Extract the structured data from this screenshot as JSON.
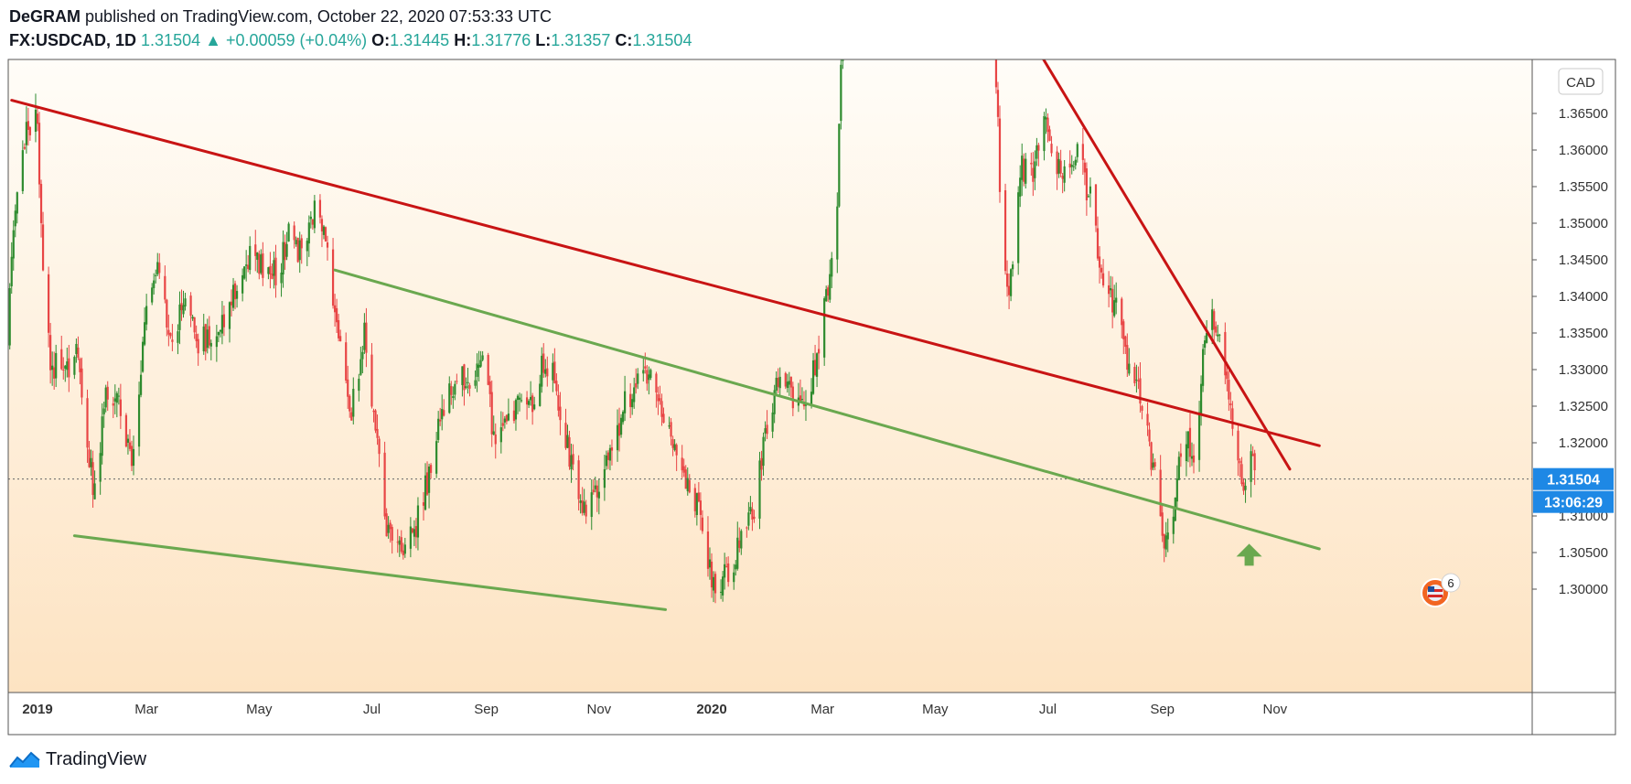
{
  "header": {
    "author": "DeGRAM",
    "published_text": "published on TradingView.com, October 22, 2020 07:53:33 UTC",
    "symbol": "FX:USDCAD, 1D",
    "last": "1.31504",
    "change": "+0.00059 (+0.04%)",
    "open_label": "O:",
    "open": "1.31445",
    "high_label": "H:",
    "high": "1.31776",
    "low_label": "L:",
    "low": "1.31357",
    "close_label": "C:",
    "close": "1.31504"
  },
  "chart_data": {
    "type": "candlestick",
    "currency_label": "CAD",
    "x_ticks": [
      "2019",
      "Mar",
      "May",
      "Jul",
      "Sep",
      "Nov",
      "2020",
      "Mar",
      "May",
      "Jul",
      "Sep",
      "Nov"
    ],
    "y_ticks": [
      "1.30000",
      "1.30500",
      "1.31000",
      "1.31504",
      "1.32000",
      "1.32500",
      "1.33000",
      "1.33500",
      "1.34000",
      "1.34500",
      "1.35000",
      "1.35500",
      "1.36000",
      "1.36500"
    ],
    "ylim": [
      1.2972,
      1.3731
    ],
    "price_badge": "1.31504",
    "countdown_badge": "13:06:29",
    "events_badge": "6",
    "colors": {
      "up": "#2e8b2e",
      "down": "#e84545",
      "red_line": "#c81414",
      "green_line": "#6aa84f",
      "badge": "#1e88e5"
    },
    "series_anchors": [
      [
        "2018-12-15",
        1.333
      ],
      [
        "2018-12-20",
        1.352
      ],
      [
        "2018-12-27",
        1.364
      ],
      [
        "2019-01-01",
        1.364
      ],
      [
        "2019-01-04",
        1.343
      ],
      [
        "2019-01-08",
        1.332
      ],
      [
        "2019-01-15",
        1.328
      ],
      [
        "2019-01-22",
        1.334
      ],
      [
        "2019-01-28",
        1.32
      ],
      [
        "2019-02-01",
        1.313
      ],
      [
        "2019-02-07",
        1.328
      ],
      [
        "2019-02-14",
        1.325
      ],
      [
        "2019-02-21",
        1.316
      ],
      [
        "2019-03-02",
        1.342
      ],
      [
        "2019-03-07",
        1.344
      ],
      [
        "2019-03-14",
        1.333
      ],
      [
        "2019-03-22",
        1.34
      ],
      [
        "2019-03-29",
        1.334
      ],
      [
        "2019-04-08",
        1.334
      ],
      [
        "2019-04-15",
        1.34
      ],
      [
        "2019-04-25",
        1.345
      ],
      [
        "2019-05-01",
        1.345
      ],
      [
        "2019-05-10",
        1.343
      ],
      [
        "2019-05-17",
        1.348
      ],
      [
        "2019-05-25",
        1.346
      ],
      [
        "2019-05-31",
        1.351
      ],
      [
        "2019-06-05",
        1.348
      ],
      [
        "2019-06-10",
        1.34
      ],
      [
        "2019-06-14",
        1.335
      ],
      [
        "2019-06-20",
        1.324
      ],
      [
        "2019-06-27",
        1.335
      ],
      [
        "2019-07-02",
        1.325
      ],
      [
        "2019-07-08",
        1.309
      ],
      [
        "2019-07-15",
        1.305
      ],
      [
        "2019-07-20",
        1.306
      ],
      [
        "2019-07-27",
        1.31
      ],
      [
        "2019-08-01",
        1.316
      ],
      [
        "2019-08-08",
        1.325
      ],
      [
        "2019-08-15",
        1.329
      ],
      [
        "2019-08-22",
        1.328
      ],
      [
        "2019-09-01",
        1.331
      ],
      [
        "2019-09-05",
        1.32
      ],
      [
        "2019-09-12",
        1.323
      ],
      [
        "2019-09-20",
        1.326
      ],
      [
        "2019-09-27",
        1.324
      ],
      [
        "2019-10-01",
        1.331
      ],
      [
        "2019-10-07",
        1.33
      ],
      [
        "2019-10-15",
        1.32
      ],
      [
        "2019-10-22",
        1.311
      ],
      [
        "2019-11-01",
        1.314
      ],
      [
        "2019-11-08",
        1.32
      ],
      [
        "2019-11-15",
        1.325
      ],
      [
        "2019-11-25",
        1.329
      ],
      [
        "2019-12-01",
        1.329
      ],
      [
        "2019-12-05",
        1.323
      ],
      [
        "2019-12-12",
        1.319
      ],
      [
        "2019-12-20",
        1.314
      ],
      [
        "2019-12-27",
        1.309
      ],
      [
        "2020-01-03",
        1.299
      ],
      [
        "2020-01-10",
        1.303
      ],
      [
        "2020-01-17",
        1.306
      ],
      [
        "2020-01-24",
        1.311
      ],
      [
        "2020-01-31",
        1.322
      ],
      [
        "2020-02-07",
        1.329
      ],
      [
        "2020-02-14",
        1.326
      ],
      [
        "2020-02-21",
        1.325
      ],
      [
        "2020-02-27",
        1.332
      ],
      [
        "2020-03-02",
        1.341
      ],
      [
        "2020-03-05",
        1.342
      ],
      [
        "2020-03-09",
        1.354
      ],
      [
        "2020-03-12",
        1.378
      ],
      [
        "2020-06-02",
        1.378
      ],
      [
        "2020-06-06",
        1.347
      ],
      [
        "2020-06-10",
        1.34
      ],
      [
        "2020-06-16",
        1.358
      ],
      [
        "2020-06-23",
        1.356
      ],
      [
        "2020-06-29",
        1.366
      ],
      [
        "2020-07-04",
        1.359
      ],
      [
        "2020-07-10",
        1.357
      ],
      [
        "2020-07-17",
        1.36
      ],
      [
        "2020-07-24",
        1.353
      ],
      [
        "2020-07-31",
        1.342
      ],
      [
        "2020-08-07",
        1.339
      ],
      [
        "2020-08-14",
        1.33
      ],
      [
        "2020-08-20",
        1.326
      ],
      [
        "2020-08-27",
        1.317
      ],
      [
        "2020-09-01",
        1.306
      ],
      [
        "2020-09-06",
        1.306
      ],
      [
        "2020-09-12",
        1.323
      ],
      [
        "2020-09-18",
        1.317
      ],
      [
        "2020-09-25",
        1.337
      ],
      [
        "2020-09-30",
        1.336
      ],
      [
        "2020-10-05",
        1.328
      ],
      [
        "2020-10-10",
        1.322
      ],
      [
        "2020-10-15",
        1.312
      ],
      [
        "2020-10-18",
        1.319
      ],
      [
        "2020-10-22",
        1.315
      ]
    ],
    "trendlines": [
      {
        "color": "red",
        "from": [
          "2018-12-18",
          1.3668
        ],
        "to": [
          "2020-11-25",
          1.3196
        ]
      },
      {
        "color": "red",
        "from": [
          "2020-06-26",
          1.3735
        ],
        "to": [
          "2020-11-09",
          1.3164
        ]
      },
      {
        "color": "green",
        "from": [
          "2019-06-11",
          1.3436
        ],
        "to": [
          "2020-11-25",
          1.3055
        ]
      },
      {
        "color": "green",
        "from": [
          "2019-01-21",
          1.3073
        ],
        "to": [
          "2019-12-07",
          1.2972
        ]
      }
    ],
    "arrow_at": [
      "2020-10-18",
      1.3062
    ]
  },
  "footer": {
    "brand": "TradingView"
  }
}
